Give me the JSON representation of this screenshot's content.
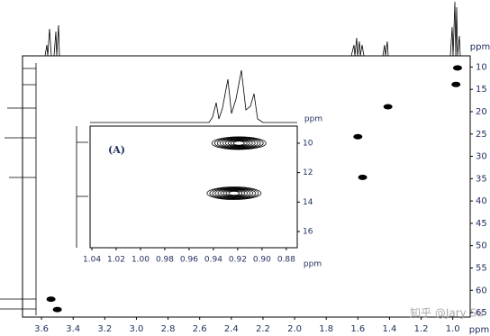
{
  "chart_data": [
    {
      "type": "scatter",
      "x_label": "ppm",
      "y_label": "ppm",
      "xlim": [
        3.72,
        0.89
      ],
      "ylim": [
        7.5,
        66
      ],
      "color": "#000000",
      "x": [
        0.97,
        0.98,
        1.41,
        1.6,
        1.57,
        3.54,
        3.5
      ],
      "values": [
        10.2,
        13.9,
        18.9,
        25.6,
        34.7,
        62,
        64.3
      ],
      "xticks": [
        3.6,
        3.4,
        3.2,
        {
          "value": 3,
          "label": "3.0"
        },
        2.8,
        2.6,
        2.4,
        2.2,
        {
          "value": 2,
          "label": "2.0"
        },
        1.8,
        1.6,
        1.4,
        1.2,
        {
          "value": 1,
          "label": "1.0"
        }
      ],
      "yticks": [
        10,
        15,
        20,
        25,
        30,
        35,
        40,
        45,
        50,
        55,
        60,
        65
      ]
    },
    {
      "type": "scatter",
      "label": "(A)",
      "x_label": "ppm",
      "y_label": "ppm",
      "xlim": [
        1.0415,
        0.871
      ],
      "ylim": [
        8.84,
        17.1
      ],
      "color": "#000000",
      "x": [
        0.919,
        0.923
      ],
      "values": [
        10,
        13.4
      ],
      "xticks": [
        1.04,
        1.02,
        {
          "value": 1,
          "label": "1.00"
        },
        0.98,
        0.96,
        0.94,
        0.92,
        {
          "value": 0.9,
          "label": "0.90"
        },
        0.88
      ],
      "yticks": [
        10,
        12,
        14,
        16
      ]
    }
  ],
  "watermark": "知乎 @Jary Su"
}
